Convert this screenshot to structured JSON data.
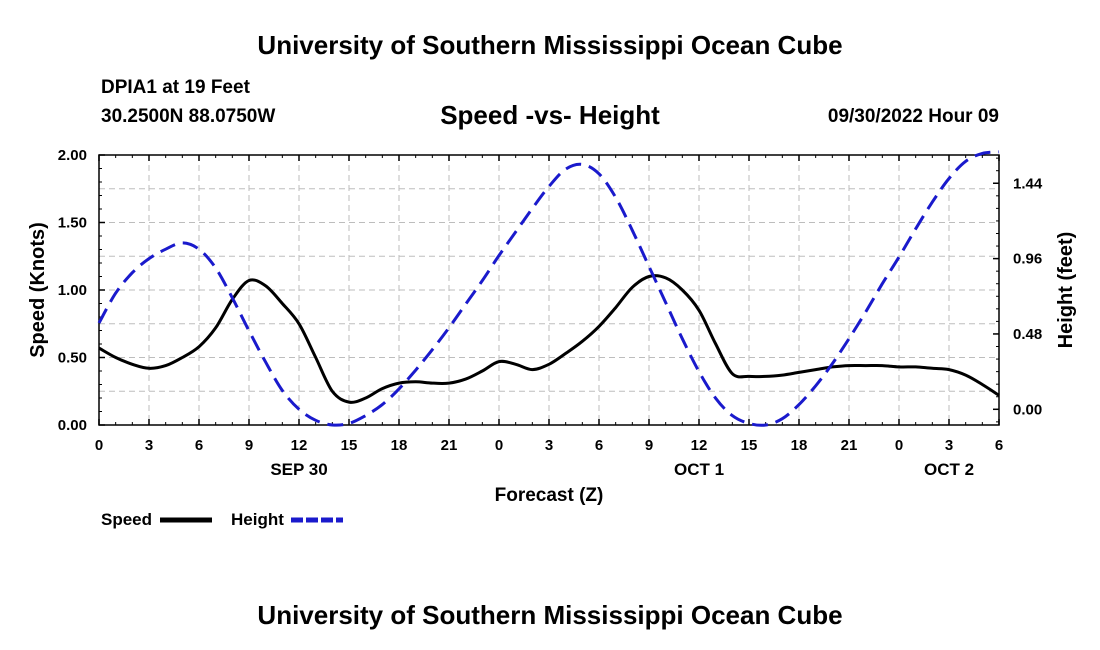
{
  "header": {
    "title": "University of Southern Mississippi Ocean Cube",
    "station": "DPIA1 at 19 Feet",
    "coords": "30.2500N  88.0750W",
    "chart_title": "Speed -vs- Height",
    "run_time": "09/30/2022 Hour 09"
  },
  "footer": {
    "title": "University of Southern Mississippi Ocean Cube"
  },
  "chart_data": {
    "type": "line",
    "title": "Speed -vs- Height",
    "xlabel": "Forecast (Z)",
    "ylabel": "Speed (Knots)",
    "y2label": "Height (feet)",
    "xlim": [
      0,
      54
    ],
    "ylim": [
      0,
      2.0
    ],
    "y2lim": [
      -0.1,
      1.62
    ],
    "grid": true,
    "x_ticks": [
      0,
      3,
      6,
      9,
      12,
      15,
      18,
      21,
      24,
      27,
      30,
      33,
      36,
      39,
      42,
      45,
      48,
      51,
      54
    ],
    "x_tick_labels": [
      "0",
      "3",
      "6",
      "9",
      "12",
      "15",
      "18",
      "21",
      "0",
      "3",
      "6",
      "9",
      "12",
      "15",
      "18",
      "21",
      "0",
      "3",
      "6"
    ],
    "y_ticks": [
      0,
      0.5,
      1.0,
      1.5,
      2.0
    ],
    "y_tick_labels": [
      "0.00",
      "0.50",
      "1.00",
      "1.50",
      "2.00"
    ],
    "y2_ticks": [
      0,
      0.48,
      0.96,
      1.44
    ],
    "y2_tick_labels": [
      "0.00",
      "0.48",
      "0.96",
      "1.44"
    ],
    "date_labels": [
      {
        "x": 12,
        "label": "SEP 30"
      },
      {
        "x": 36,
        "label": "OCT 1"
      },
      {
        "x": 51,
        "label": "OCT 2"
      }
    ],
    "legend": [
      {
        "name": "Speed",
        "color": "#000000",
        "style": "solid"
      },
      {
        "name": "Height",
        "color": "#1a1acc",
        "style": "dashed"
      }
    ],
    "series": [
      {
        "name": "Speed",
        "axis": "left",
        "color": "#000000",
        "x": [
          0,
          1,
          2,
          3,
          4,
          5,
          6,
          7,
          8,
          9,
          10,
          11,
          12,
          13,
          14,
          15,
          16,
          17,
          18,
          19,
          20,
          21,
          22,
          23,
          24,
          25,
          26,
          27,
          28,
          29,
          30,
          31,
          32,
          33,
          34,
          35,
          36,
          37,
          38,
          39,
          40,
          41,
          42,
          43,
          44,
          45,
          46,
          47,
          48,
          49,
          50,
          51,
          52,
          53,
          54
        ],
        "values": [
          0.57,
          0.5,
          0.45,
          0.42,
          0.44,
          0.5,
          0.58,
          0.72,
          0.93,
          1.07,
          1.03,
          0.9,
          0.75,
          0.5,
          0.25,
          0.17,
          0.2,
          0.27,
          0.31,
          0.32,
          0.31,
          0.31,
          0.34,
          0.4,
          0.47,
          0.45,
          0.41,
          0.45,
          0.53,
          0.62,
          0.73,
          0.87,
          1.02,
          1.1,
          1.09,
          1.0,
          0.85,
          0.6,
          0.38,
          0.36,
          0.36,
          0.37,
          0.39,
          0.41,
          0.43,
          0.44,
          0.44,
          0.44,
          0.43,
          0.43,
          0.42,
          0.41,
          0.37,
          0.3,
          0.22
        ]
      },
      {
        "name": "Height",
        "axis": "right",
        "color": "#1a1acc",
        "x": [
          0,
          1,
          2,
          3,
          4,
          5,
          6,
          7,
          8,
          9,
          10,
          11,
          12,
          13,
          14,
          15,
          16,
          17,
          18,
          19,
          20,
          21,
          22,
          23,
          24,
          25,
          26,
          27,
          28,
          29,
          30,
          31,
          32,
          33,
          34,
          35,
          36,
          37,
          38,
          39,
          40,
          41,
          42,
          43,
          44,
          45,
          46,
          47,
          48,
          49,
          50,
          51,
          52,
          53,
          54
        ],
        "values": [
          0.55,
          0.74,
          0.87,
          0.96,
          1.02,
          1.06,
          1.02,
          0.9,
          0.71,
          0.5,
          0.3,
          0.12,
          0.0,
          -0.07,
          -0.1,
          -0.09,
          -0.04,
          0.03,
          0.13,
          0.25,
          0.38,
          0.52,
          0.67,
          0.82,
          0.98,
          1.13,
          1.28,
          1.42,
          1.53,
          1.56,
          1.5,
          1.35,
          1.14,
          0.91,
          0.68,
          0.45,
          0.24,
          0.07,
          -0.04,
          -0.09,
          -0.1,
          -0.06,
          0.03,
          0.15,
          0.29,
          0.45,
          0.62,
          0.8,
          0.97,
          1.15,
          1.32,
          1.47,
          1.58,
          1.63,
          1.64
        ]
      }
    ]
  }
}
